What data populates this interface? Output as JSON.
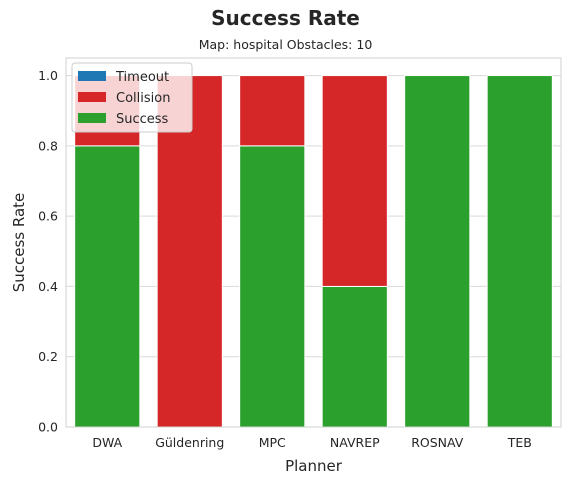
{
  "chart_data": {
    "type": "bar",
    "stacked": true,
    "title": "Success Rate",
    "subtitle": "Map: hospital Obstacles: 10",
    "xlabel": "Planner",
    "ylabel": "Success Rate",
    "categories": [
      "DWA",
      "Güldenring",
      "MPC",
      "NAVREP",
      "ROSNAV",
      "TEB"
    ],
    "ylim": [
      0,
      1.05
    ],
    "yticks": [
      "0.0",
      "0.2",
      "0.4",
      "0.6",
      "0.8",
      "1.0"
    ],
    "grid": true,
    "legend_position": "top-left",
    "series": [
      {
        "name": "Success",
        "color": "#2ca02c",
        "values": [
          0.8,
          0.0,
          0.8,
          0.4,
          1.0,
          1.0
        ]
      },
      {
        "name": "Collision",
        "color": "#d62728",
        "values": [
          0.2,
          1.0,
          0.2,
          0.6,
          0.0,
          0.0
        ]
      },
      {
        "name": "Timeout",
        "color": "#1f77b4",
        "values": [
          0.0,
          0.0,
          0.0,
          0.0,
          0.0,
          0.0
        ]
      }
    ],
    "legend_order": [
      "Timeout",
      "Collision",
      "Success"
    ]
  }
}
